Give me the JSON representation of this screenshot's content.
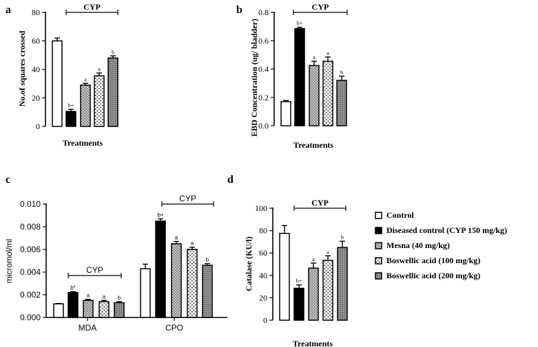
{
  "colors": {
    "ink": "#000000",
    "background": "#ffffff",
    "gray_fill": "#8c8c8c"
  },
  "legend": {
    "items": [
      {
        "label": "Control",
        "pattern": "white"
      },
      {
        "label": "Diseased control (CYP 150 mg/kg)",
        "pattern": "black"
      },
      {
        "label": "Mesna (40 mg/kg)",
        "pattern": "gray-dots"
      },
      {
        "label": "Boswellic acid (100 mg/kg)",
        "pattern": "white-dots"
      },
      {
        "label": "Boswellic acid (200 mg/kg)",
        "pattern": "gray-dense"
      }
    ]
  },
  "chart_data": [
    {
      "panel": "a",
      "type": "bar",
      "xlabel": "Treatments",
      "ylabel": "No.of squares crossed",
      "ylim": [
        0,
        80
      ],
      "yticks": [
        "0",
        "20",
        "40",
        "60",
        "80"
      ],
      "group_bracket": "CYP",
      "values": [
        60,
        10.5,
        29,
        35.5,
        48
      ],
      "errors": [
        2,
        1.5,
        1.2,
        2,
        1.5
      ],
      "annotations": [
        "",
        "b+",
        "a",
        "a",
        "b"
      ]
    },
    {
      "panel": "b",
      "type": "bar",
      "xlabel": "Treatments",
      "ylabel": "EBD Concentration (ug/ bladder)",
      "ylim": [
        0,
        0.8
      ],
      "yticks": [
        "0.0",
        "0.2",
        "0.4",
        "0.6",
        "0.8"
      ],
      "group_bracket": "CYP",
      "values": [
        0.17,
        0.685,
        0.425,
        0.455,
        0.32
      ],
      "errors": [
        0.008,
        0.01,
        0.03,
        0.03,
        0.03
      ],
      "annotations": [
        "",
        "b+",
        "a",
        "a",
        "b"
      ]
    },
    {
      "panel": "c",
      "type": "bar",
      "ylabel": "micromol/ml",
      "ylim": [
        0,
        0.01
      ],
      "yticks": [
        "0.000",
        "0.002",
        "0.004",
        "0.006",
        "0.008",
        "0.010"
      ],
      "categories": [
        "MDA",
        "CPO"
      ],
      "series": [
        {
          "name": "Control",
          "values": [
            0.0012,
            0.0043
          ],
          "errors": [
            3e-05,
            0.0004
          ]
        },
        {
          "name": "Diseased control (CYP 150 mg/kg)",
          "values": [
            0.0022,
            0.0085
          ],
          "errors": [
            8e-05,
            0.0002
          ]
        },
        {
          "name": "Mesna (40 mg/kg)",
          "values": [
            0.0015,
            0.0065
          ],
          "errors": [
            0.0001,
            0.0002
          ]
        },
        {
          "name": "Boswellic acid (100 mg/kg)",
          "values": [
            0.0014,
            0.006
          ],
          "errors": [
            0.0001,
            0.0002
          ]
        },
        {
          "name": "Boswellic acid (200 mg/kg)",
          "values": [
            0.0013,
            0.0046
          ],
          "errors": [
            0.0001,
            0.00015
          ]
        }
      ],
      "annotations": [
        [
          "",
          "b*",
          "a",
          "a",
          "b"
        ],
        [
          "",
          "b+",
          "a",
          "a",
          "b"
        ]
      ],
      "group_bracket": "CYP"
    },
    {
      "panel": "d",
      "type": "bar",
      "xlabel": "Treatments",
      "ylabel": "Catalase (KU/l)",
      "ylim": [
        0,
        100
      ],
      "yticks": [
        "0",
        "20",
        "40",
        "60",
        "80",
        "100"
      ],
      "group_bracket": "CYP",
      "values": [
        77.5,
        28.5,
        46.5,
        53.5,
        65
      ],
      "errors": [
        7,
        3,
        4.5,
        4,
        5.5
      ],
      "annotations": [
        "",
        "b+",
        "a",
        "a",
        "b"
      ]
    }
  ]
}
